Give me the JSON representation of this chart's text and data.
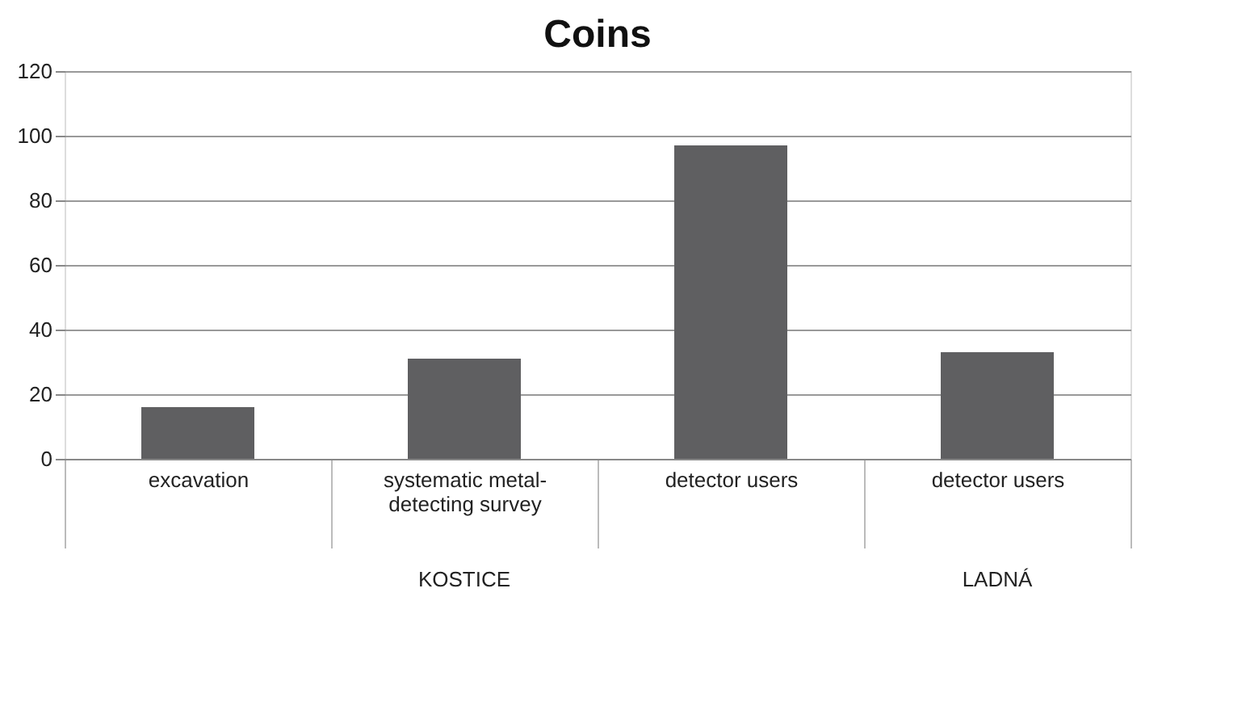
{
  "chart_data": {
    "type": "bar",
    "title": "Coins",
    "categories": [
      "excavation",
      "systematic metal-detecting survey",
      "detector users",
      "detector users"
    ],
    "values": [
      16,
      31,
      97,
      33
    ],
    "color": "#5f5f61",
    "ylim": [
      0,
      120
    ],
    "yticks": [
      0,
      20,
      40,
      60,
      80,
      100,
      120
    ],
    "grid": "y",
    "annotations": [
      "KOSTICE",
      "LADNÁ"
    ]
  }
}
